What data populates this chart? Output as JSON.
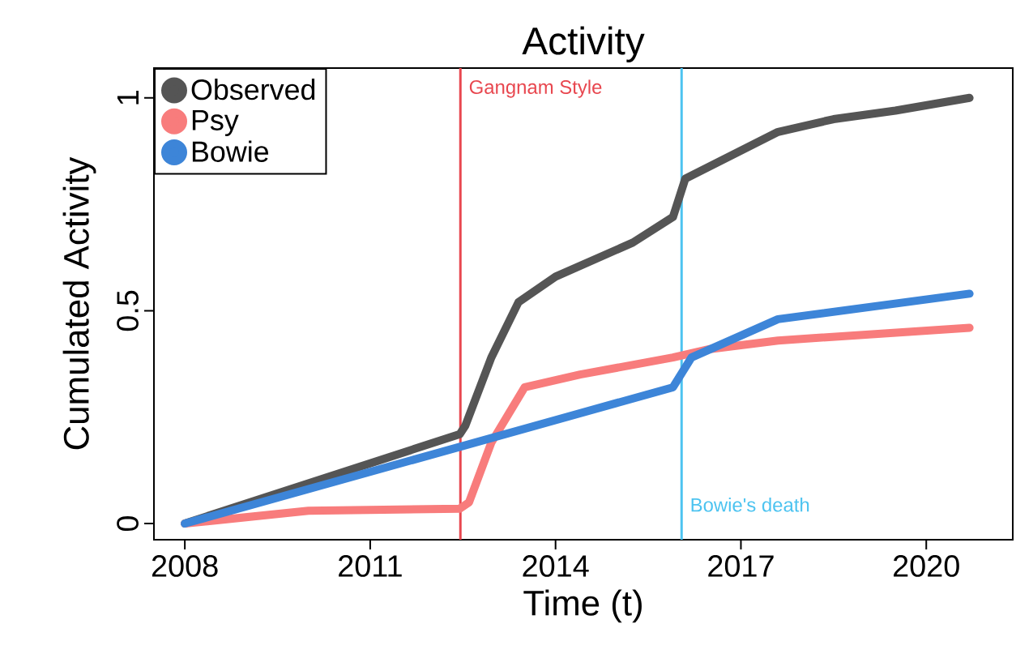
{
  "chart_data": {
    "type": "line",
    "title": "Activity",
    "xlabel": "Time (t)",
    "ylabel": "Cumulated Activity",
    "xlim": [
      2007.5,
      2021.4
    ],
    "ylim": [
      -0.038,
      1.07
    ],
    "xticks": [
      2008,
      2011,
      2014,
      2017,
      2020
    ],
    "yticks": [
      0,
      {
        "value": 0.5,
        "label": "0.5"
      },
      1
    ],
    "legend": "top left",
    "series": [
      {
        "name": "Observed",
        "color": "#555555",
        "x": [
          2008,
          2012.45,
          2012.54,
          2012.96,
          2013.4,
          2014.0,
          2015.25,
          2015.9,
          2016.1,
          2017.6,
          2018.5,
          2019.5,
          2020.7
        ],
        "values": [
          0,
          0.21,
          0.23,
          0.39,
          0.52,
          0.58,
          0.66,
          0.72,
          0.81,
          0.92,
          0.95,
          0.97,
          1.0
        ]
      },
      {
        "name": "Psy",
        "color": "#f87c7c",
        "x": [
          2008,
          2010,
          2012.45,
          2012.6,
          2012.96,
          2013.5,
          2014.4,
          2015.9,
          2016.5,
          2017.6,
          2020.7
        ],
        "values": [
          0,
          0.03,
          0.035,
          0.05,
          0.19,
          0.32,
          0.35,
          0.39,
          0.41,
          0.43,
          0.46
        ]
      },
      {
        "name": "Bowie",
        "color": "#3d85d8",
        "x": [
          2008,
          2015.9,
          2016.2,
          2017.6,
          2020.7
        ],
        "values": [
          0,
          0.32,
          0.39,
          0.48,
          0.54
        ]
      }
    ],
    "ref_lines": [
      {
        "axis": "x",
        "value": 2012.46,
        "label": "Gangnam Style",
        "color": "#e8474f"
      },
      {
        "axis": "x",
        "value": 2016.04,
        "label": "Bowie's death",
        "color": "#4cc3f0"
      }
    ]
  }
}
